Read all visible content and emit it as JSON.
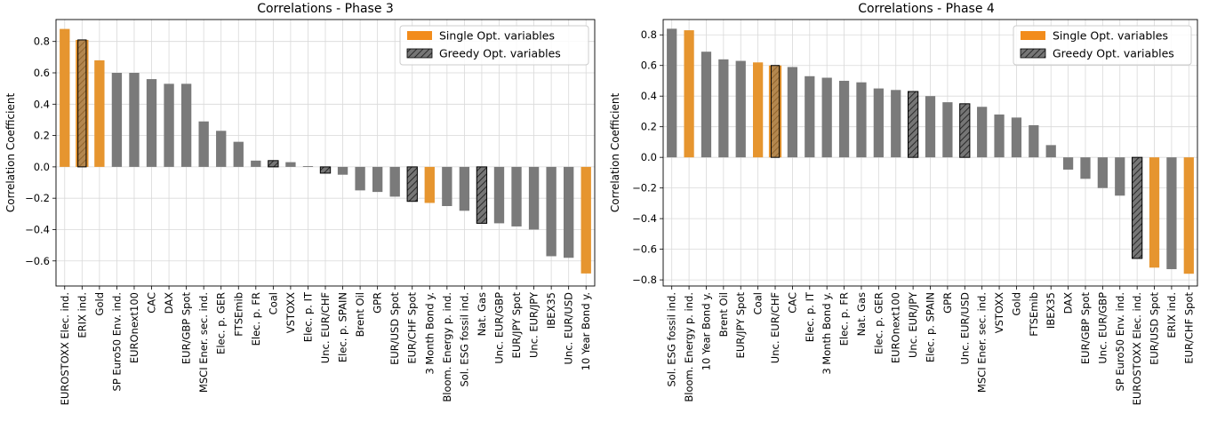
{
  "colors": {
    "plain": "#7a7a7a",
    "single": "#f28c1c",
    "single_bar": "#e6952f",
    "greedy_fill": "#767676",
    "greedy_edge": "#000000",
    "grid": "#d9d9d9"
  },
  "chart_data": [
    {
      "type": "bar",
      "title": "Correlations - Phase 3",
      "xlabel": "",
      "ylabel": "Correlation Coefficient",
      "ylim": [
        -0.76,
        0.94
      ],
      "yticks": [
        -0.6,
        -0.4,
        -0.2,
        0.0,
        0.2,
        0.4,
        0.6,
        0.8
      ],
      "ytick_labels": [
        "−0.6",
        "−0.4",
        "−0.2",
        "0.0",
        "0.2",
        "0.4",
        "0.6",
        "0.8"
      ],
      "grid": true,
      "legend_position": "top-right",
      "legend": [
        {
          "label": "Single Opt. variables",
          "style": "single"
        },
        {
          "label": "Greedy Opt. variables",
          "style": "greedy"
        }
      ],
      "categories": [
        "EUROSTOXX Elec. ind.",
        "ERIX ind.",
        "Gold",
        "SP Euro50 Env. ind.",
        "EUROnext100",
        "CAC",
        "DAX",
        "EUR/GBP Spot",
        "MSCI Ener. sec. ind.",
        "Elec. p. GER",
        "FTSEmib",
        "Elec. p. FR",
        "Coal",
        "VSTOXX",
        "Elec. p. IT",
        "Unc. EUR/CHF",
        "Elec. p. SPAIN",
        "Brent Oil",
        "GPR",
        "EUR/USD Spot",
        "EUR/CHF Spot",
        "3 Month Bond y.",
        "Bloom. Energy p. ind.",
        "Sol. ESG fossil ind.",
        "Nat. Gas",
        "Unc. EUR/GBP",
        "EUR/JPY Spot",
        "Unc. EUR/JPY",
        "IBEX35",
        "Unc. EUR/USD",
        "10 Year Bond y."
      ],
      "values": [
        0.88,
        0.81,
        0.68,
        0.6,
        0.6,
        0.56,
        0.53,
        0.53,
        0.29,
        0.23,
        0.16,
        0.04,
        0.04,
        0.03,
        0.005,
        -0.04,
        -0.05,
        -0.15,
        -0.16,
        -0.19,
        -0.22,
        -0.23,
        -0.25,
        -0.28,
        -0.36,
        -0.36,
        -0.38,
        -0.4,
        -0.57,
        -0.58,
        -0.68
      ],
      "highlight": [
        "single",
        "single+greedy",
        "single",
        "none",
        "none",
        "none",
        "none",
        "none",
        "none",
        "none",
        "none",
        "none",
        "greedy",
        "none",
        "none",
        "greedy",
        "none",
        "none",
        "none",
        "none",
        "greedy",
        "single",
        "none",
        "none",
        "greedy",
        "none",
        "none",
        "none",
        "none",
        "none",
        "single"
      ]
    },
    {
      "type": "bar",
      "title": "Correlations - Phase 4",
      "xlabel": "",
      "ylabel": "Correlation Coefficient",
      "ylim": [
        -0.84,
        0.9
      ],
      "yticks": [
        -0.8,
        -0.6,
        -0.4,
        -0.2,
        0.0,
        0.2,
        0.4,
        0.6,
        0.8
      ],
      "ytick_labels": [
        "−0.8",
        "−0.6",
        "−0.4",
        "−0.2",
        "0.0",
        "0.2",
        "0.4",
        "0.6",
        "0.8"
      ],
      "grid": true,
      "legend_position": "top-right",
      "legend": [
        {
          "label": "Single Opt. variables",
          "style": "single"
        },
        {
          "label": "Greedy Opt. variables",
          "style": "greedy"
        }
      ],
      "categories": [
        "Sol. ESG fossil ind.",
        "Bloom. Energy p. ind.",
        "10 Year Bond y.",
        "Brent Oil",
        "EUR/JPY Spot",
        "Coal",
        "Unc. EUR/CHF",
        "CAC",
        "Elec. p. IT",
        "3 Month Bond y.",
        "Elec. p. FR",
        "Nat. Gas",
        "Elec. p. GER",
        "EUROnext100",
        "Unc. EUR/JPY",
        "Elec. p. SPAIN",
        "GPR",
        "Unc. EUR/USD",
        "MSCI Ener. sec. ind.",
        "VSTOXX",
        "Gold",
        "FTSEmib",
        "IBEX35",
        "DAX",
        "EUR/GBP Spot",
        "Unc. EUR/GBP",
        "SP Euro50 Env. ind.",
        "EUROSTOXX Elec. ind.",
        "EUR/USD Spot",
        "ERIX ind.",
        "EUR/CHF Spot"
      ],
      "values": [
        0.84,
        0.83,
        0.69,
        0.64,
        0.63,
        0.62,
        0.6,
        0.59,
        0.53,
        0.52,
        0.5,
        0.49,
        0.45,
        0.44,
        0.43,
        0.4,
        0.36,
        0.35,
        0.33,
        0.28,
        0.26,
        0.21,
        0.08,
        -0.08,
        -0.14,
        -0.2,
        -0.25,
        -0.66,
        -0.72,
        -0.73,
        -0.76
      ],
      "highlight": [
        "none",
        "single",
        "none",
        "none",
        "none",
        "single",
        "single+greedy",
        "none",
        "none",
        "none",
        "none",
        "none",
        "none",
        "none",
        "greedy",
        "none",
        "none",
        "greedy",
        "none",
        "none",
        "none",
        "none",
        "none",
        "none",
        "none",
        "none",
        "none",
        "greedy",
        "single",
        "none",
        "single"
      ]
    }
  ]
}
